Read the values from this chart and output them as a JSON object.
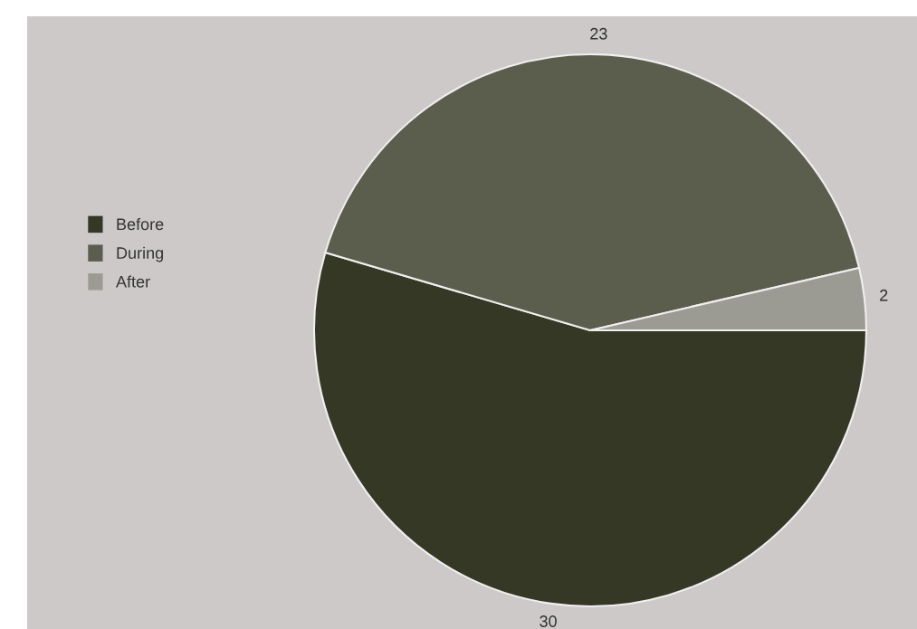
{
  "chart_data": {
    "type": "pie",
    "categories": [
      "Before",
      "During",
      "After"
    ],
    "values": [
      30,
      23,
      2
    ],
    "colors": [
      "#343824",
      "#5b5d4d",
      "#9c9b93"
    ],
    "data_labels": true,
    "legend": "left"
  }
}
